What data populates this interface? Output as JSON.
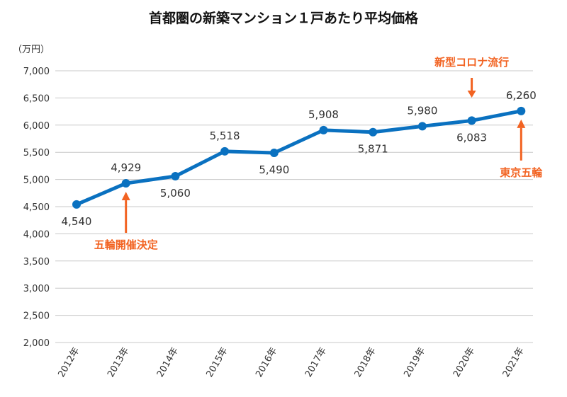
{
  "chart_data": {
    "type": "line",
    "title": "首都圏の新築マンション１戸あたり平均価格",
    "ylabel": "（万円）",
    "xlabel": "",
    "categories": [
      "2012年",
      "2013年",
      "2014年",
      "2015年",
      "2016年",
      "2017年",
      "2018年",
      "2019年",
      "2020年",
      "2021年"
    ],
    "values": [
      4540,
      4929,
      5060,
      5518,
      5490,
      5908,
      5871,
      5980,
      6083,
      6260
    ],
    "data_labels": [
      "4,540",
      "4,929",
      "5,060",
      "5,518",
      "5,490",
      "5,908",
      "5,871",
      "5,980",
      "6,083",
      "6,260"
    ],
    "label_positions": [
      "below",
      "above",
      "below",
      "above",
      "below",
      "above",
      "below",
      "above",
      "below",
      "above"
    ],
    "ylim": [
      2000,
      7000
    ],
    "yticks": [
      2000,
      2500,
      3000,
      3500,
      4000,
      4500,
      5000,
      5500,
      6000,
      6500,
      7000
    ],
    "ytick_labels": [
      "2,000",
      "2,500",
      "3,000",
      "3,500",
      "4,000",
      "4,500",
      "5,000",
      "5,500",
      "6,000",
      "6,500",
      "7,000"
    ],
    "grid": true,
    "line_color": "#0a71c0",
    "annotation_color": "#f26322",
    "annotations": [
      {
        "text": "五輪開催決定",
        "category_index": 1,
        "arrow": "up"
      },
      {
        "text": "新型コロナ流行",
        "category_index": 8,
        "arrow": "down"
      },
      {
        "text": "東京五輪",
        "category_index": 9,
        "arrow": "up"
      }
    ]
  }
}
